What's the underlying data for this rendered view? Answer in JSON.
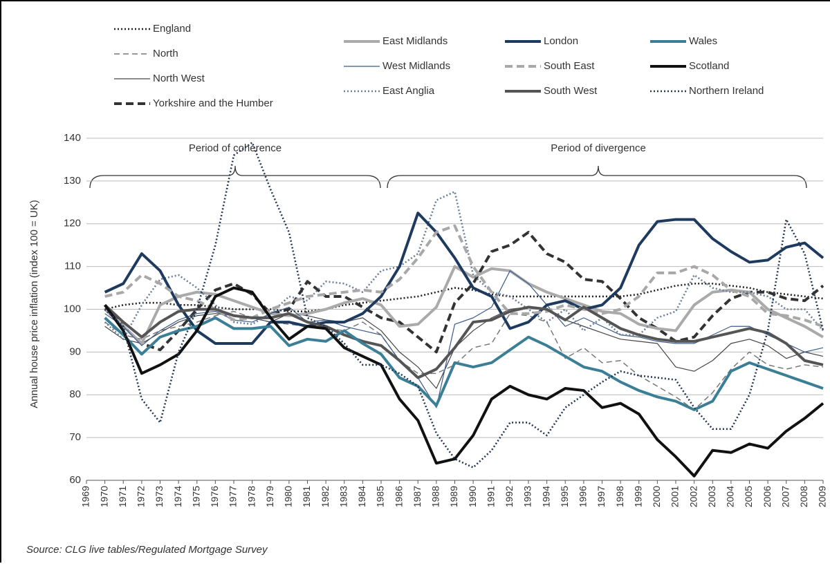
{
  "chart_data": {
    "type": "line",
    "y_label": "Annual house price inflation (index 100 = UK)",
    "annotations": [
      "Period of coherence",
      "Period of divergence"
    ],
    "source": "Source: CLG live tables/Regulated Mortgage Survey",
    "xlim": [
      1969,
      2009
    ],
    "xticks": [
      1969,
      1970,
      1971,
      1972,
      1973,
      1974,
      1975,
      1976,
      1977,
      1978,
      1979,
      1980,
      1981,
      1982,
      1983,
      1984,
      1985,
      1986,
      1987,
      1988,
      1989,
      1990,
      1991,
      1992,
      1993,
      1994,
      1995,
      1996,
      1997,
      1998,
      1999,
      2000,
      2001,
      2002,
      2003,
      2004,
      2005,
      2006,
      2007,
      2008,
      2009
    ],
    "ylim": [
      60,
      140
    ],
    "yticks": [
      60,
      70,
      80,
      90,
      100,
      110,
      120,
      130,
      140
    ],
    "grid": true,
    "x": [
      1970,
      1971,
      1972,
      1973,
      1974,
      1975,
      1976,
      1977,
      1978,
      1979,
      1980,
      1981,
      1982,
      1983,
      1984,
      1985,
      1986,
      1987,
      1988,
      1989,
      1990,
      1991,
      1992,
      1993,
      1994,
      1995,
      1996,
      1997,
      1998,
      1999,
      2000,
      2001,
      2002,
      2003,
      2004,
      2005,
      2006,
      2007,
      2008,
      2009
    ],
    "series": [
      {
        "name": "England",
        "color": "#222222",
        "style": "dotted",
        "values": [
          100,
          101,
          101.5,
          101.5,
          101,
          101,
          100.5,
          100,
          100,
          100,
          99.5,
          99.5,
          100,
          101,
          101.5,
          102,
          102.5,
          103,
          104,
          105,
          104.5,
          103.5,
          103,
          103,
          103,
          103,
          103,
          103,
          103,
          103.5,
          104.5,
          105.5,
          106,
          106,
          105.5,
          105,
          104,
          103.5,
          103,
          102.5
        ]
      },
      {
        "name": "North",
        "color": "#777777",
        "style": "dashed",
        "values": [
          97,
          94,
          93,
          95,
          96,
          97,
          98.5,
          99.5,
          98,
          97,
          96.5,
          96,
          95.5,
          95,
          97,
          94,
          88,
          85,
          85,
          87,
          91,
          92,
          99,
          98.5,
          97,
          88.5,
          91,
          87.5,
          88,
          84.5,
          82,
          79.5,
          76.5,
          80.5,
          86,
          90,
          87,
          86,
          87,
          86.5
        ]
      },
      {
        "name": "North West",
        "color": "#444444",
        "style": "solid",
        "values": [
          96,
          93,
          92,
          94.5,
          97,
          98.5,
          99,
          98.5,
          98,
          97,
          99,
          98.5,
          97.5,
          97,
          98,
          95,
          90,
          86.5,
          81.5,
          91,
          95,
          98,
          100,
          100.5,
          100,
          97.5,
          96,
          94.5,
          93,
          92.5,
          92,
          86.5,
          85.5,
          88,
          92,
          93,
          91.5,
          88.5,
          90,
          89
        ]
      },
      {
        "name": "Yorkshire and the Humber",
        "color": "#333333",
        "style": "thick-dashed",
        "values": [
          101,
          96,
          92,
          90.5,
          95,
          100,
          104.5,
          106,
          103.5,
          99,
          100,
          106.5,
          103,
          103,
          100.5,
          98,
          97,
          93.5,
          90,
          101.5,
          106,
          113.5,
          115,
          118,
          113,
          111,
          107,
          106.5,
          102.5,
          98,
          95.5,
          92.5,
          93.5,
          98.5,
          102.5,
          104,
          104,
          102.5,
          102,
          105.5
        ]
      },
      {
        "name": "East Midlands",
        "color": "#aaaaaa",
        "style": "thick",
        "values": [
          100,
          96,
          92,
          101,
          103,
          104,
          103.5,
          102,
          100.5,
          99,
          98.5,
          99,
          100,
          101.5,
          102.5,
          101,
          96,
          96.5,
          100.5,
          110,
          107.5,
          109.5,
          109,
          106,
          104,
          102.5,
          101,
          99.5,
          99,
          96.5,
          95.5,
          95,
          101,
          104,
          104.5,
          104,
          100,
          98,
          96,
          93.5
        ]
      },
      {
        "name": "West Midlands",
        "color": "#3a5a8c",
        "style": "solid",
        "values": [
          99,
          96,
          91.5,
          95,
          97.5,
          99,
          99.5,
          97.5,
          97,
          99,
          100.5,
          97,
          97.5,
          96,
          95,
          94,
          88,
          84,
          77,
          96.5,
          98,
          100.5,
          109,
          106,
          101,
          96,
          98,
          96,
          94,
          93.5,
          92.5,
          92,
          92,
          94,
          96,
          96,
          94,
          92,
          90,
          91
        ]
      },
      {
        "name": "East Anglia",
        "color": "#6a7f96",
        "style": "dotted",
        "values": [
          97,
          93,
          101,
          107,
          108,
          105,
          101,
          97,
          96.5,
          99,
          103,
          102,
          106.5,
          106,
          104,
          109,
          110,
          113,
          125.5,
          127.5,
          108,
          104,
          103,
          100,
          97,
          100,
          95,
          98,
          94,
          94,
          98,
          99.5,
          108,
          105,
          104,
          104,
          103,
          100,
          100,
          95
        ]
      },
      {
        "name": "London",
        "color": "#1f3a5f",
        "style": "thick",
        "values": [
          104,
          106,
          113,
          109,
          101,
          95,
          92,
          92,
          92,
          97,
          97,
          96,
          97,
          97,
          99,
          103,
          110,
          122.5,
          118,
          112,
          105,
          103,
          95.5,
          97,
          101,
          102,
          100,
          101,
          105,
          115,
          120.5,
          121,
          121,
          116.5,
          113.5,
          111,
          111.5,
          114.5,
          115.5,
          112
        ]
      },
      {
        "name": "South East",
        "color": "#a8a8a8",
        "style": "thick-dashed",
        "values": [
          103,
          104,
          108,
          106,
          103,
          102,
          100,
          97.5,
          98,
          100,
          101.5,
          103,
          103.5,
          104,
          104.5,
          104,
          107,
          112,
          118,
          119.5,
          110,
          104,
          99,
          99,
          99.5,
          101,
          100,
          99,
          100,
          103,
          108.5,
          108.5,
          110,
          108,
          104.5,
          103,
          99,
          98.5,
          97.5,
          96
        ]
      },
      {
        "name": "South West",
        "color": "#555555",
        "style": "thick",
        "values": [
          101,
          97,
          93.5,
          97,
          99.5,
          100,
          100,
          98.5,
          98,
          98,
          99,
          97,
          96,
          94,
          92.5,
          91.5,
          88,
          84,
          86,
          91,
          97,
          97.5,
          99.5,
          100.5,
          100,
          97.5,
          100.5,
          98,
          95.5,
          94,
          93,
          92.5,
          92.5,
          93.5,
          94.5,
          95.5,
          94.5,
          92,
          88,
          87
        ]
      },
      {
        "name": "Wales",
        "color": "#3b7f96",
        "style": "thick",
        "values": [
          98,
          94,
          89.5,
          93.5,
          95,
          96,
          98,
          95.5,
          95.5,
          96,
          91.5,
          93,
          92.5,
          95,
          92,
          89.5,
          84,
          82,
          77.5,
          87.5,
          86.5,
          87.5,
          90.5,
          93.5,
          91.5,
          89,
          86.5,
          85.5,
          83,
          81,
          79.5,
          78.5,
          76.5,
          78.5,
          85.5,
          87.5,
          86,
          84.5,
          83,
          81.5
        ]
      },
      {
        "name": "Scotland",
        "color": "#111111",
        "style": "thick",
        "values": [
          101,
          95,
          85,
          87,
          89.5,
          95,
          103,
          105,
          104,
          98,
          93,
          96,
          95.5,
          91,
          89,
          87,
          79,
          74,
          64,
          65,
          70.5,
          79,
          82,
          80,
          79,
          81.5,
          81,
          77,
          78,
          75.5,
          69.5,
          65.5,
          61,
          67,
          66.5,
          68.5,
          67.5,
          71.5,
          74.5,
          78
        ]
      },
      {
        "name": "Northern Ireland",
        "color": "#243650",
        "style": "dotted",
        "values": [
          100,
          96,
          79,
          73.5,
          90,
          100,
          115,
          136,
          139,
          128,
          118,
          98,
          96,
          92,
          87,
          87,
          85,
          82,
          71,
          65,
          63,
          67,
          73.5,
          73.5,
          70.5,
          77,
          80,
          83,
          85.5,
          84.5,
          84,
          83.5,
          77,
          72,
          72,
          80,
          95,
          121,
          113,
          95
        ]
      }
    ]
  }
}
